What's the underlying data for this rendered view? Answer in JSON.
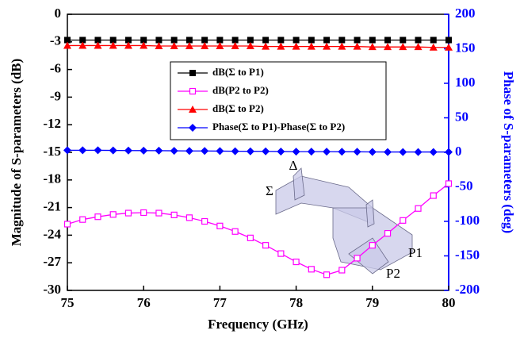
{
  "chart_data": {
    "type": "line",
    "x_label": "Frequency (GHz)",
    "y_label": "Magnitude of S-parameters (dB)",
    "y2_label": "Phase of S-parameters (deg)",
    "x": [
      75,
      75.2,
      75.4,
      75.6,
      75.8,
      76,
      76.2,
      76.4,
      76.6,
      76.8,
      77,
      77.2,
      77.4,
      77.6,
      77.8,
      78,
      78.2,
      78.4,
      78.6,
      78.8,
      79,
      79.2,
      79.4,
      79.6,
      79.8,
      80
    ],
    "xlim": [
      75,
      80
    ],
    "xticks": [
      75,
      76,
      77,
      78,
      79,
      80
    ],
    "ylim": [
      -30,
      0
    ],
    "yticks": [
      0,
      -3,
      -6,
      -9,
      -12,
      -15,
      -18,
      -21,
      -24,
      -27,
      -30
    ],
    "y2lim": [
      -200,
      200
    ],
    "y2ticks": [
      200,
      150,
      100,
      50,
      0,
      -50,
      -100,
      -150,
      -200
    ],
    "y2_color": "#0000ff",
    "series": [
      {
        "name": "dB(Σ to P1)",
        "color": "#000000",
        "marker": "square-filled",
        "values": [
          -2.8,
          -2.8,
          -2.8,
          -2.8,
          -2.8,
          -2.8,
          -2.8,
          -2.8,
          -2.8,
          -2.8,
          -2.8,
          -2.8,
          -2.8,
          -2.8,
          -2.8,
          -2.8,
          -2.8,
          -2.8,
          -2.8,
          -2.8,
          -2.8,
          -2.8,
          -2.8,
          -2.8,
          -2.8,
          -2.8
        ]
      },
      {
        "name": "dB(P2 to P2)",
        "color": "#ff00ff",
        "marker": "square-open",
        "values": [
          -22.8,
          -22.3,
          -22.0,
          -21.75,
          -21.6,
          -21.55,
          -21.6,
          -21.8,
          -22.1,
          -22.5,
          -23.0,
          -23.6,
          -24.3,
          -25.1,
          -26.0,
          -26.9,
          -27.7,
          -28.3,
          -27.8,
          -26.5,
          -25.1,
          -23.8,
          -22.4,
          -21.1,
          -19.7,
          -18.4
        ]
      },
      {
        "name": "dB(Σ to P2)",
        "color": "#ff0000",
        "marker": "triangle",
        "values": [
          -3.4,
          -3.4,
          -3.4,
          -3.4,
          -3.4,
          -3.4,
          -3.45,
          -3.45,
          -3.45,
          -3.45,
          -3.45,
          -3.45,
          -3.45,
          -3.5,
          -3.5,
          -3.5,
          -3.5,
          -3.5,
          -3.5,
          -3.5,
          -3.55,
          -3.55,
          -3.55,
          -3.55,
          -3.6,
          -3.6
        ]
      },
      {
        "name": "Phase(Σ to P1)-Phase(Σ to P2)",
        "color": "#0000ff",
        "marker": "diamond",
        "axis": "y2",
        "values": [
          3,
          3,
          3,
          2.8,
          2.6,
          2.5,
          2.4,
          2.2,
          2,
          2,
          1.8,
          1.6,
          1.5,
          1.4,
          1.2,
          1,
          1,
          1,
          0.8,
          0.8,
          0.6,
          0.5,
          0.5,
          0.5,
          0.5,
          0.5
        ]
      }
    ],
    "annotations": [
      "Σ",
      "Δ",
      "P1",
      "P2"
    ]
  }
}
